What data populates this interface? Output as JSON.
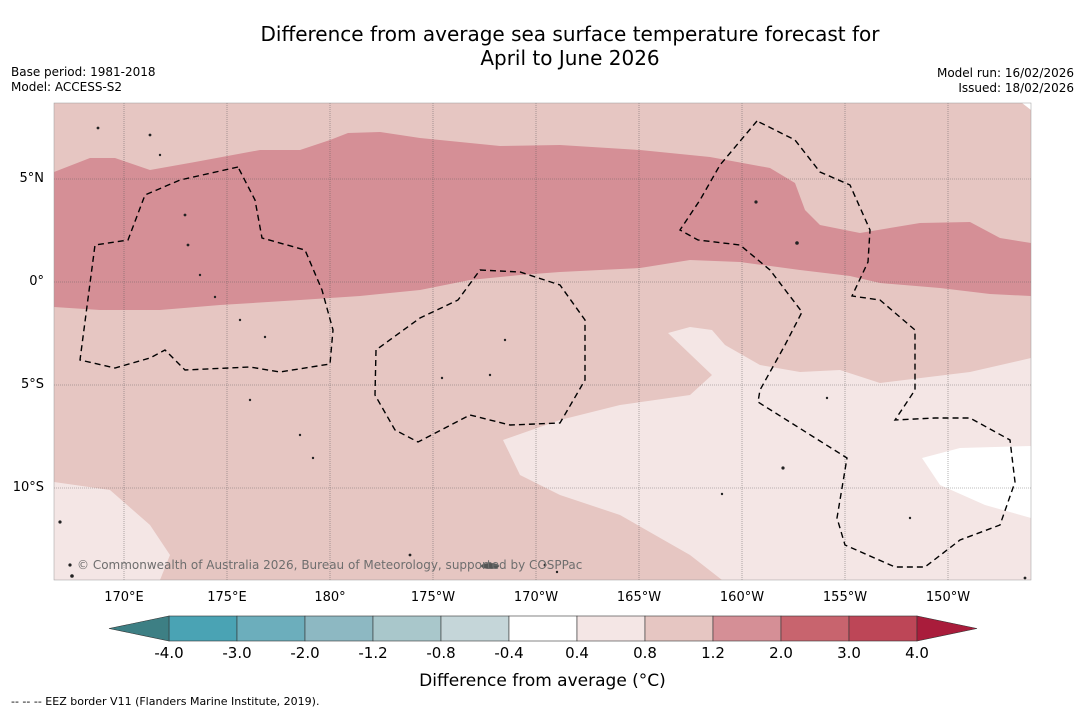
{
  "title_line1": "Difference from average sea surface temperature forecast for",
  "title_line2": "April to June 2026",
  "base_period": "Base period: 1981-2018",
  "model": "Model: ACCESS-S2",
  "model_run": "Model run: 16/02/2026",
  "issued": "Issued: 18/02/2026",
  "copyright": "© Commonwealth of Australia 2026, Bureau of Meteorology, supported by COSPPac",
  "longitude_labels": [
    "170°E",
    "175°E",
    "180°",
    "175°W",
    "170°W",
    "165°W",
    "160°W",
    "155°W",
    "150°W"
  ],
  "latitude_labels": [
    "5°N",
    "0°",
    "5°S",
    "10°S"
  ],
  "colorbar": {
    "labels": [
      "-4.0",
      "-3.0",
      "-2.0",
      "-1.2",
      "-0.8",
      "-0.4",
      "0.4",
      "0.8",
      "1.2",
      "2.0",
      "3.0",
      "4.0"
    ],
    "colors": [
      "#4aa3b4",
      "#6caebc",
      "#8db8c2",
      "#a9c7cb",
      "#c5d6d9",
      "#ffffff",
      "#f4e6e5",
      "#e6c6c2",
      "#d58f96",
      "#c8646e",
      "#bd4657"
    ],
    "low_extend_color": "#3d7f84",
    "high_extend_color": "#a91c3b",
    "title": "Difference from average (°C)"
  },
  "field_colors": {
    "light": "#f4e6e5",
    "medium": "#e6c6c2",
    "strong": "#d58f96",
    "neutral": "#ffffff"
  },
  "footnote": "-- -- -- EEZ border V11 (Flanders Marine Institute, 2019)."
}
